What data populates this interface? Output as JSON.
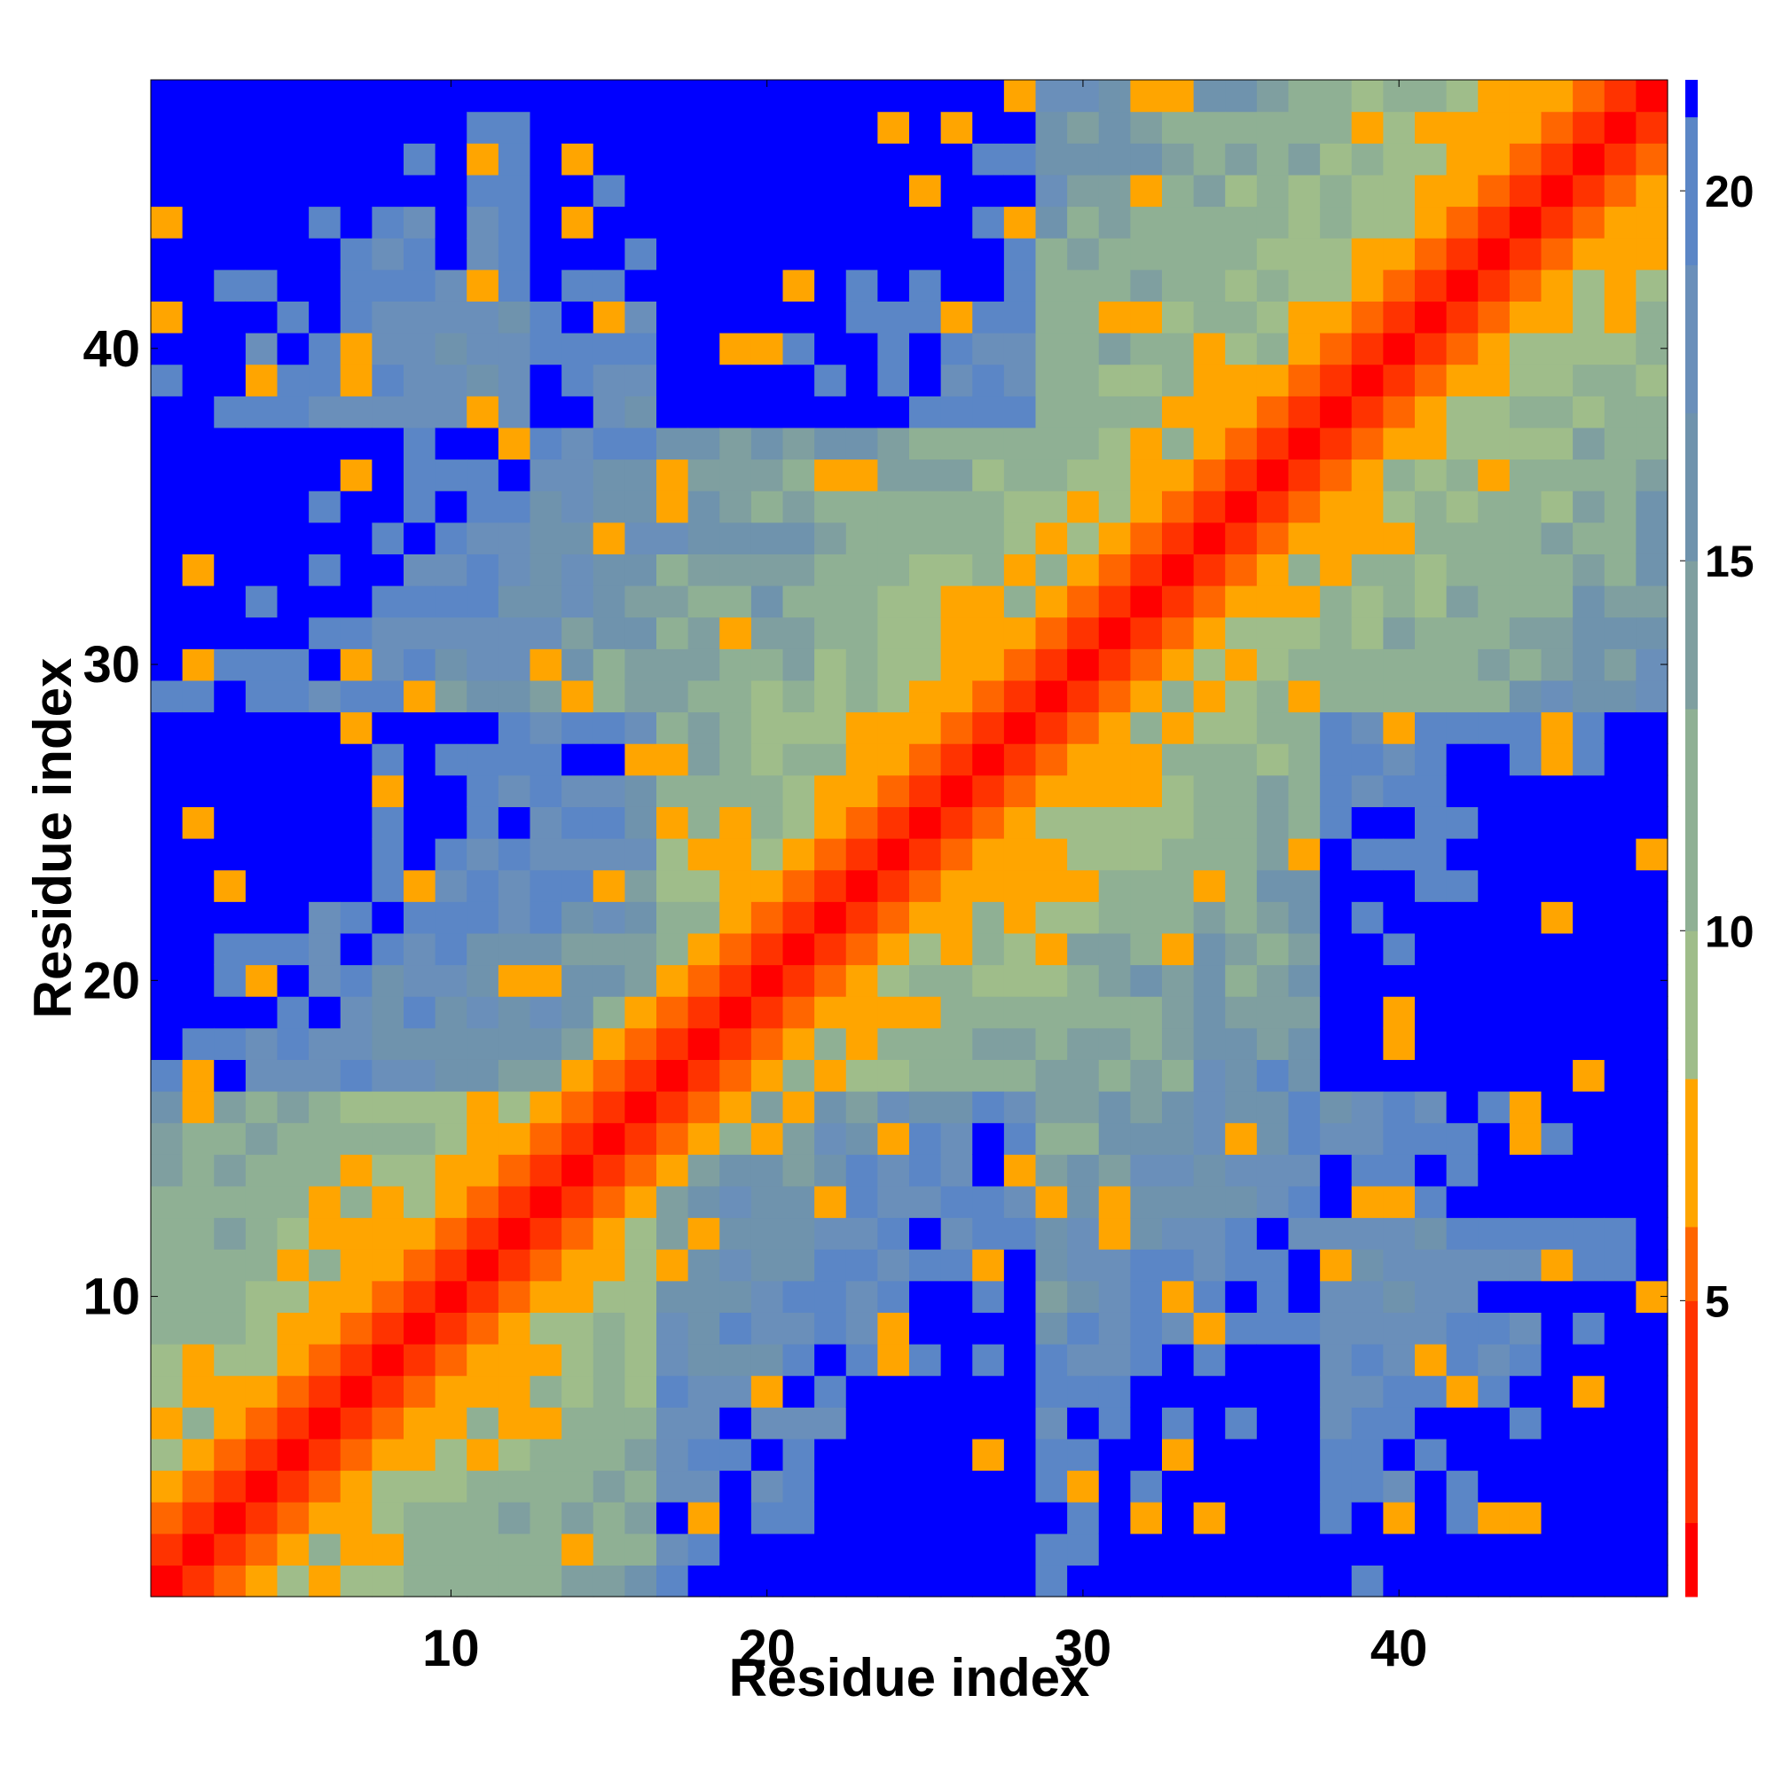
{
  "chart_data": {
    "type": "heatmap",
    "title": "",
    "xlabel": "Residue index",
    "ylabel": "Residue index",
    "n": 48,
    "xlim": [
      0.5,
      48.5
    ],
    "ylim": [
      0.5,
      48.5
    ],
    "xticks": [
      10,
      20,
      30,
      40
    ],
    "yticks": [
      10,
      20,
      30,
      40
    ],
    "colorbar": {
      "ticks": [
        5,
        10,
        15,
        20
      ],
      "range": [
        1,
        21.5
      ],
      "colors": {
        "lt_2": "#ff0000",
        "2_5": "#ff3300",
        "5_6": "#ff6600",
        "6_8": "#ffa500",
        "8_10": "#9fbd8a",
        "10_13": "#8fb094",
        "13_15": "#7f9fa0",
        "15_17": "#6f93ad",
        "17_19": "#6a8fba",
        "19_21": "#5b86c6",
        "gt_21": "#0000ff"
      }
    },
    "values": "approximate Cα–Cα distance map; symmetric; ~0 on diagonal, ~4 at |i-j|=1, ~6 at |i-j|=2, ~8 at |i-j|=3, growing to >20 for distant residue pairs; blue regions (>21) at low-index × mid-index and high-index × mid-index blocks"
  },
  "axes": {
    "x_ticks": [
      "10",
      "20",
      "30",
      "40"
    ],
    "y_ticks": [
      "10",
      "20",
      "30",
      "40"
    ],
    "colorbar_ticks": [
      "5",
      "10",
      "15",
      "20"
    ],
    "xlabel": "Residue index",
    "ylabel": "Residue index"
  }
}
